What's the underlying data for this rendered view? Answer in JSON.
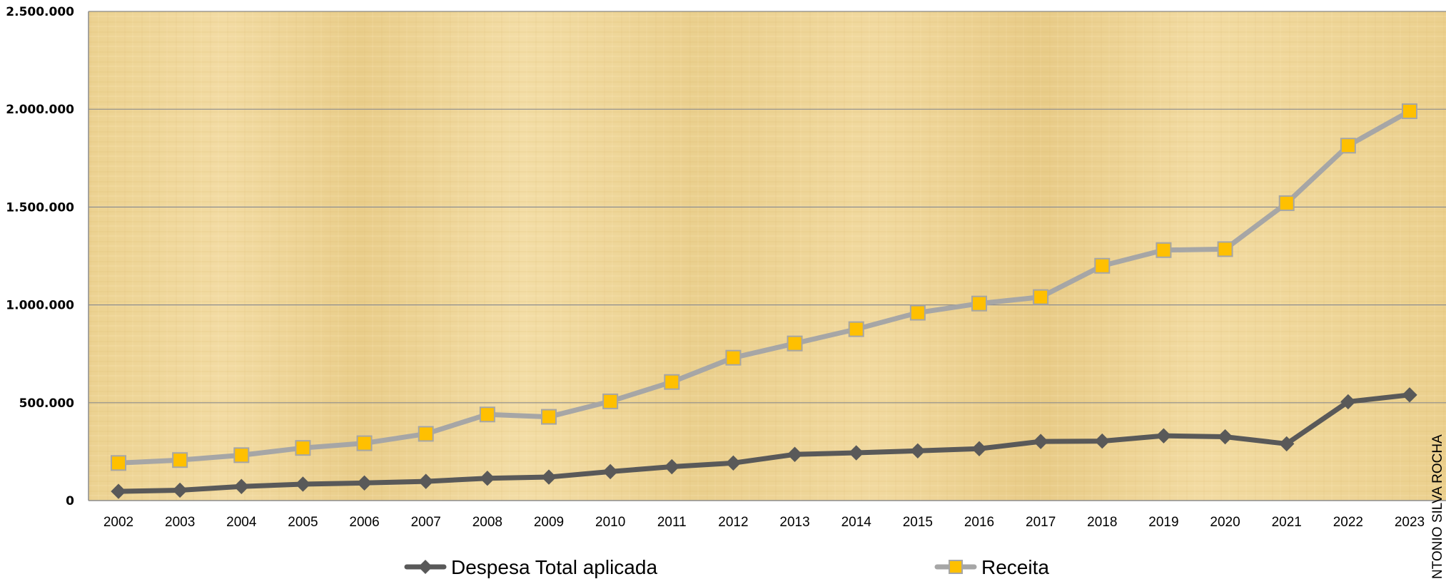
{
  "chart_data": {
    "type": "line",
    "x": [
      "2002",
      "2003",
      "2004",
      "2005",
      "2006",
      "2007",
      "2008",
      "2009",
      "2010",
      "2011",
      "2012",
      "2013",
      "2014",
      "2015",
      "2016",
      "2017",
      "2018",
      "2019",
      "2020",
      "2021",
      "2022",
      "2023"
    ],
    "series": [
      {
        "name": "Despesa Total aplicada",
        "color": "#595959",
        "marker": "diamond",
        "values": [
          47000,
          53000,
          72000,
          84000,
          90000,
          98000,
          114000,
          120000,
          148000,
          173000,
          192000,
          236000,
          244000,
          254000,
          265000,
          302000,
          304000,
          331000,
          326000,
          290000,
          505000,
          540000
        ]
      },
      {
        "name": "Receita",
        "color": "#a6a6a6",
        "marker_color": "#ffc000",
        "marker": "square",
        "values": [
          192000,
          207000,
          232000,
          269000,
          293000,
          341000,
          440000,
          428000,
          507000,
          606000,
          730000,
          803000,
          876000,
          960000,
          1007000,
          1040000,
          1200000,
          1280000,
          1285000,
          1520000,
          1814000,
          1990000
        ]
      }
    ],
    "ylim": [
      0,
      2500000
    ],
    "yticks": [
      0,
      500000,
      1000000,
      1500000,
      2000000,
      2500000
    ],
    "ytick_labels": [
      "0",
      "500.000",
      "1.000.000",
      "1.500.000",
      "2.000.000",
      "2.500.000"
    ],
    "grid": true,
    "legend_position": "bottom",
    "title": "",
    "xlabel": "",
    "ylabel": "",
    "plot_background": "#efd596"
  },
  "watermark": "NTONIO SILVA ROCHA"
}
